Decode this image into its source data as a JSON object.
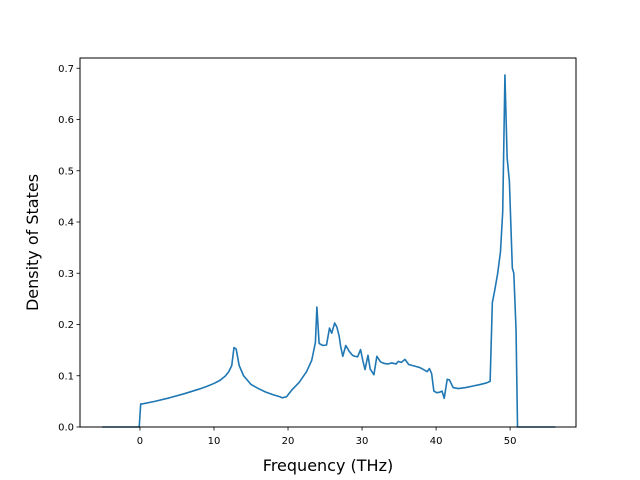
{
  "chart_data": {
    "type": "line",
    "title": "",
    "xlabel": "Frequency (THz)",
    "ylabel": "Density of States",
    "xlim": [
      -8.1,
      58.9
    ],
    "ylim": [
      0,
      0.72
    ],
    "xticks": [
      0,
      10,
      20,
      30,
      40,
      50
    ],
    "yticks": [
      0.0,
      0.1,
      0.2,
      0.3,
      0.4,
      0.5,
      0.6,
      0.7
    ],
    "ytick_labels": [
      "0.0",
      "0.1",
      "0.2",
      "0.3",
      "0.4",
      "0.5",
      "0.6",
      "0.7"
    ],
    "grid": false,
    "legend": "none",
    "line_color": "#1f77b4",
    "series": [
      {
        "x": [
          -5.1,
          -0.1,
          0.1,
          0.3,
          2,
          4,
          6,
          8,
          9,
          10,
          10.8,
          11.5,
          12,
          12.4,
          12.7,
          13.0,
          13.4,
          14,
          15,
          16,
          17,
          18,
          18.9,
          19.2,
          19.8,
          20.5,
          21.5,
          22.5,
          23.2,
          23.7,
          23.9,
          24.2,
          24.7,
          25.2,
          25.6,
          25.9,
          26.3,
          26.6,
          26.9,
          27.1,
          27.4,
          27.8,
          28.3,
          28.7,
          29.0,
          29.4,
          29.8,
          30.1,
          30.4,
          30.8,
          31.1,
          31.6,
          32.0,
          32.5,
          33.0,
          33.5,
          34.0,
          34.6,
          34.9,
          35.3,
          35.8,
          36.3,
          36.8,
          37.3,
          37.8,
          38.3,
          38.8,
          39.1,
          39.4,
          39.7,
          40.1,
          40.5,
          40.8,
          41.1,
          41.5,
          41.8,
          42.3,
          43.0,
          44.0,
          45.0,
          46.0,
          46.8,
          47.3,
          47.6,
          47.9,
          48.3,
          48.7,
          49.0,
          49.3,
          49.6,
          49.9,
          50.3,
          50.5,
          50.8,
          51.0,
          56.1
        ],
        "y": [
          0.0,
          0.0,
          0.045,
          0.045,
          0.05,
          0.057,
          0.065,
          0.074,
          0.079,
          0.085,
          0.091,
          0.099,
          0.108,
          0.12,
          0.155,
          0.152,
          0.12,
          0.1,
          0.083,
          0.075,
          0.068,
          0.063,
          0.059,
          0.057,
          0.059,
          0.072,
          0.087,
          0.108,
          0.13,
          0.165,
          0.234,
          0.163,
          0.159,
          0.16,
          0.193,
          0.183,
          0.203,
          0.195,
          0.178,
          0.158,
          0.138,
          0.159,
          0.147,
          0.14,
          0.138,
          0.137,
          0.151,
          0.13,
          0.112,
          0.14,
          0.113,
          0.102,
          0.138,
          0.127,
          0.124,
          0.123,
          0.125,
          0.123,
          0.128,
          0.126,
          0.132,
          0.122,
          0.12,
          0.118,
          0.116,
          0.112,
          0.108,
          0.114,
          0.104,
          0.07,
          0.067,
          0.068,
          0.07,
          0.056,
          0.093,
          0.092,
          0.077,
          0.075,
          0.077,
          0.08,
          0.083,
          0.086,
          0.089,
          0.243,
          0.265,
          0.298,
          0.342,
          0.42,
          0.687,
          0.525,
          0.48,
          0.31,
          0.3,
          0.19,
          0.0,
          0.0
        ]
      }
    ]
  }
}
